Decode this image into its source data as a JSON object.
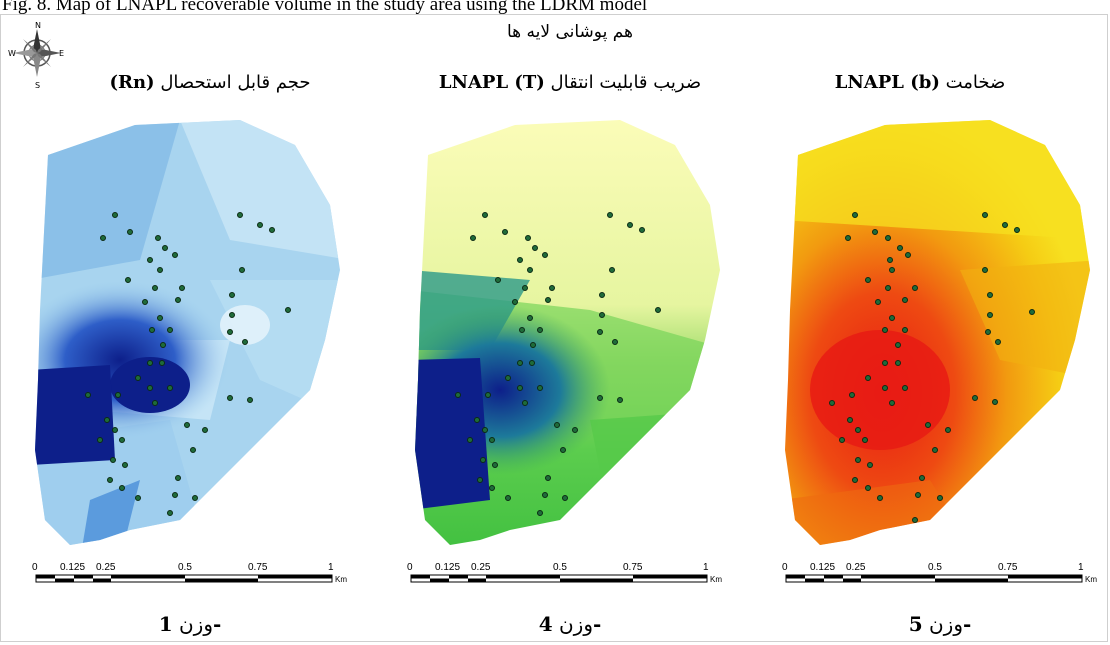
{
  "caption": "Fig. 8. Map of LNAPL recoverable volume in the study area using the LDRM model",
  "subtitle": "هم پوشانی لایه ها",
  "compass": {
    "n": "N",
    "s": "S",
    "e": "E",
    "w": "W"
  },
  "panels": [
    {
      "title_fa": "حجم قابل استحصال",
      "title_var": "(Rn)",
      "weight_word": "وزن",
      "weight_num": "1-"
    },
    {
      "title_fa": "ضریب قابلیت انتقال",
      "title_var": "LNAPL (T)",
      "weight_word": "وزن",
      "weight_num": "4-"
    },
    {
      "title_fa": "ضخامت",
      "title_var": "LNAPL (b)",
      "weight_word": "وزن",
      "weight_num": "5-"
    }
  ],
  "scalebar": {
    "ticks": [
      "0",
      "0.125",
      "0.25",
      "0.5",
      "0.75",
      "1"
    ],
    "unit": "Km"
  },
  "colors": {
    "panel1": [
      "#d6ecf7",
      "#9fd0ee",
      "#4a8fd8",
      "#0d1f8a"
    ],
    "panel2": [
      "#fbfcb8",
      "#d8f08a",
      "#4fc74a",
      "#0d1f8a"
    ],
    "panel3": [
      "#f7e020",
      "#f2b010",
      "#ee6a10",
      "#e81b14"
    ]
  }
}
